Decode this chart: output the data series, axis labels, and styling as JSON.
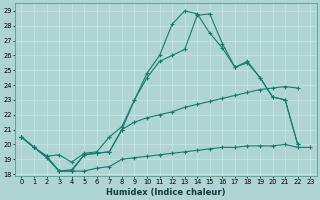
{
  "xlabel": "Humidex (Indice chaleur)",
  "x": [
    0,
    1,
    2,
    3,
    4,
    5,
    6,
    7,
    8,
    9,
    10,
    11,
    12,
    13,
    14,
    15,
    16,
    17,
    18,
    19,
    20,
    21,
    22,
    23
  ],
  "line_top": [
    20.5,
    19.8,
    19.2,
    19.3,
    18.8,
    19.4,
    19.5,
    20.5,
    21.2,
    23.0,
    24.8,
    26.0,
    28.1,
    29.0,
    28.8,
    27.5,
    26.5,
    25.2,
    25.6,
    24.5,
    23.2,
    23.0,
    20.0,
    null
  ],
  "line_mid": [
    20.5,
    19.8,
    19.2,
    18.2,
    18.3,
    19.3,
    19.4,
    19.5,
    21.0,
    23.0,
    24.5,
    25.6,
    26.0,
    26.4,
    28.7,
    28.8,
    26.8,
    25.2,
    25.5,
    24.5,
    23.2,
    23.0,
    20.0,
    null
  ],
  "line_slope": [
    20.5,
    19.8,
    19.2,
    18.2,
    18.2,
    19.3,
    19.4,
    19.5,
    21.0,
    21.5,
    21.8,
    22.0,
    22.2,
    22.5,
    22.7,
    22.9,
    23.1,
    23.3,
    23.5,
    23.7,
    23.8,
    23.9,
    23.8,
    null
  ],
  "line_bot": [
    20.5,
    19.8,
    19.1,
    18.2,
    18.2,
    18.2,
    18.4,
    18.5,
    19.0,
    19.1,
    19.2,
    19.3,
    19.4,
    19.5,
    19.6,
    19.7,
    19.8,
    19.8,
    19.9,
    19.9,
    19.9,
    20.0,
    19.8,
    19.8
  ],
  "bg_color": "#aed4d4",
  "grid_color": "#c8e8e8",
  "line_color": "#1a7a6e",
  "ylim": [
    17.9,
    29.5
  ],
  "xlim": [
    -0.5,
    23.5
  ],
  "yticks": [
    18,
    19,
    20,
    21,
    22,
    23,
    24,
    25,
    26,
    27,
    28,
    29
  ],
  "xticks": [
    0,
    1,
    2,
    3,
    4,
    5,
    6,
    7,
    8,
    9,
    10,
    11,
    12,
    13,
    14,
    15,
    16,
    17,
    18,
    19,
    20,
    21,
    22,
    23
  ]
}
